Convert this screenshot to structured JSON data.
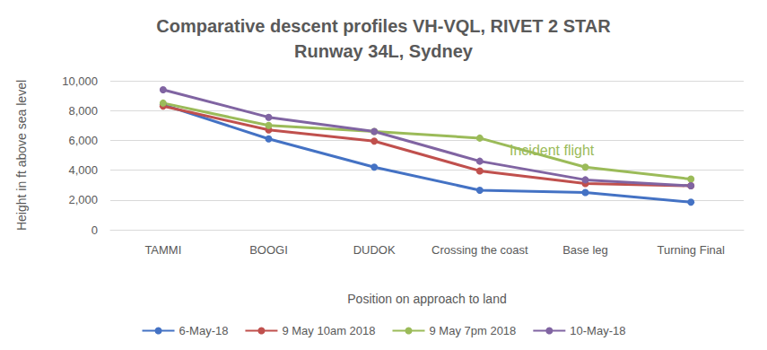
{
  "chart_data": {
    "type": "line",
    "title": "Comparative descent profiles VH-VQL, RIVET 2 STAR\nRunway 34L, Sydney",
    "x_label": "Position on approach to land",
    "y_label": "Height in ft above sea level",
    "categories": [
      "TAMMI",
      "BOOGI",
      "DUDOK",
      "Crossing the coast",
      "Base leg",
      "Turning Final"
    ],
    "series": [
      {
        "name": "6-May-18",
        "color": "#4472c4",
        "values": [
          8400,
          6100,
          4200,
          2650,
          2500,
          1850
        ]
      },
      {
        "name": "9 May 10am 2018",
        "color": "#c0504d",
        "values": [
          8300,
          6700,
          5950,
          3950,
          3100,
          2950
        ]
      },
      {
        "name": "9 May 7pm 2018",
        "color": "#9bbb59",
        "values": [
          8500,
          7000,
          6600,
          6150,
          4200,
          3400
        ]
      },
      {
        "name": "10-May-18",
        "color": "#8064a2",
        "values": [
          9400,
          7550,
          6600,
          4600,
          3350,
          2950
        ]
      }
    ],
    "ylim": [
      0,
      10000
    ],
    "yticks": [
      0,
      2000,
      4000,
      6000,
      8000,
      10000
    ],
    "grid": true,
    "legend": "bottom",
    "marker": "circle",
    "annotation": {
      "text": "Incident flight",
      "series": "9 May 7pm 2018"
    }
  }
}
